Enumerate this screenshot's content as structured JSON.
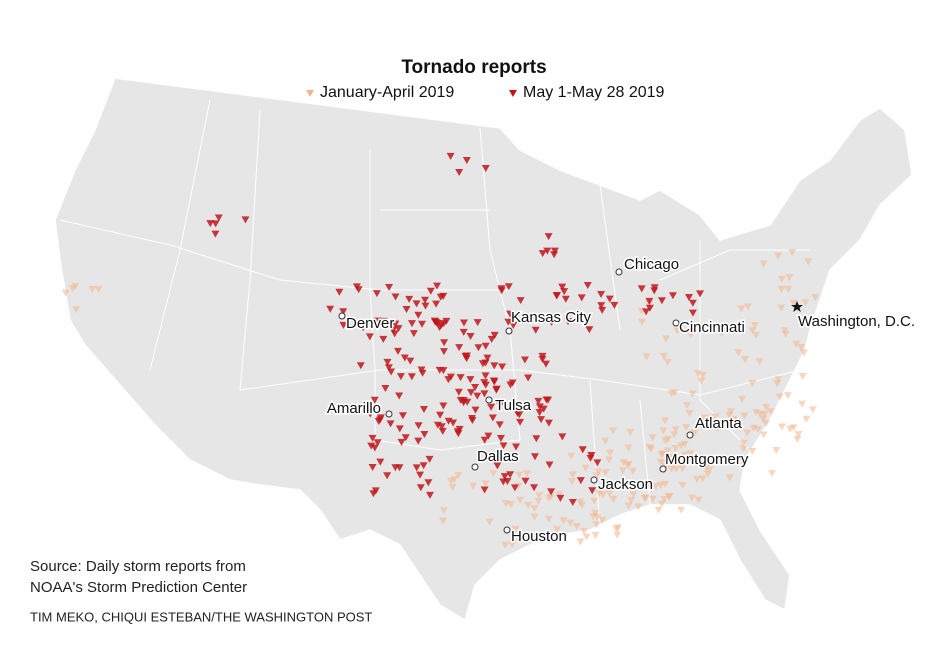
{
  "title": "Tornado reports",
  "legend": [
    {
      "label": "January-April 2019",
      "color": "#f2b48c"
    },
    {
      "label": "May 1-May 28 2019",
      "color": "#c0151b"
    }
  ],
  "cities": [
    "Chicago",
    "Denver",
    "Kansas City",
    "Cincinnati",
    "Washington, D.C.",
    "Amarillo",
    "Tulsa",
    "Atlanta",
    "Dallas",
    "Montgomery",
    "Jackson",
    "Houston"
  ],
  "source": [
    "Source: Daily storm reports from",
    "NOAA's Storm Prediction Center"
  ],
  "credit": "TIM MEKO, CHIQUI ESTEBAN/THE WASHINGTON POST"
}
